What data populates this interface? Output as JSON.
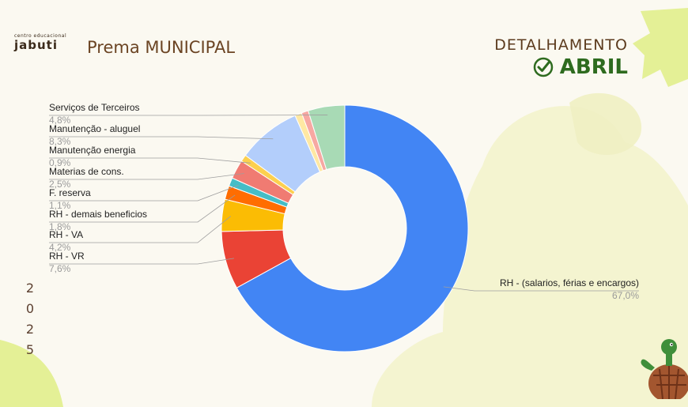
{
  "header": {
    "logo_small": "centro educacional",
    "logo_big": "jabuti",
    "title": "Prema MUNICIPAL",
    "detail_label": "DETALHAMENTO",
    "month": "ABRIL"
  },
  "side": {
    "year_digits": [
      "2",
      "0",
      "2",
      "5"
    ]
  },
  "colors": {
    "background": "#fbf9f1",
    "accent_green": "#2e6b1f",
    "title_brown": "#6b4423",
    "deco_yellow": "#e7f0a0"
  },
  "icons": [
    "check-circle-icon",
    "turtle-icon"
  ],
  "chart_data": {
    "type": "pie",
    "donut": true,
    "categories": [
      "RH - (salarios, férias e encargos)",
      "RH - VR",
      "RH - VA",
      "RH - demais beneficios",
      "F. reserva",
      "Materias de cons.",
      "Manutenção energia",
      "Manutenção - aluguel",
      "",
      "",
      "Serviços de Terceiros"
    ],
    "values": [
      67.0,
      7.6,
      4.2,
      1.8,
      1.1,
      2.5,
      0.9,
      8.3,
      0.9,
      0.9,
      4.8
    ],
    "value_labels": [
      "67,0%",
      "7,6%",
      "4,2%",
      "1,8%",
      "1,1%",
      "2,5%",
      "0,9%",
      "8,3%",
      "",
      "",
      "4,8%"
    ],
    "colors": [
      "#4285f4",
      "#ea4335",
      "#fbbc04",
      "#ff6d01",
      "#46bdc6",
      "#f07b72",
      "#fcd04f",
      "#b3cefb",
      "#ffe8a3",
      "#f7a8a2",
      "#a8dab5"
    ]
  }
}
